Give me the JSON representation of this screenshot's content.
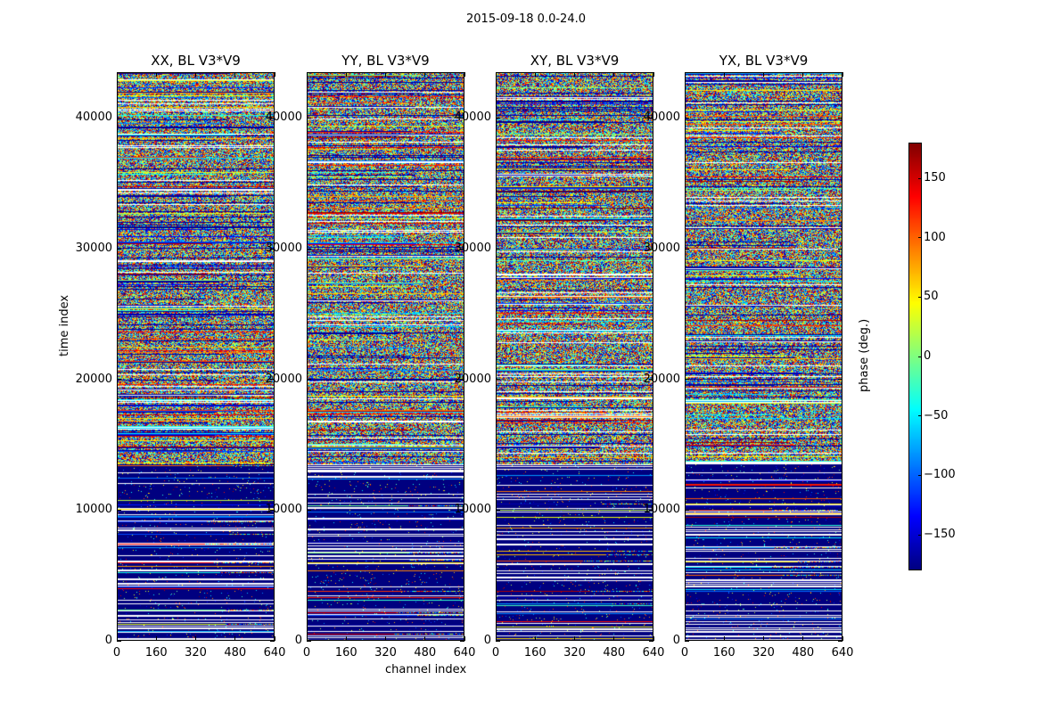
{
  "figure": {
    "suptitle": "2015-09-18 0.0-24.0"
  },
  "colors": {
    "colormap": "jet",
    "colormap_stops": [
      "#00007f",
      "#0000ff",
      "#007fff",
      "#00ffff",
      "#7fff7f",
      "#ffff00",
      "#ff7f00",
      "#ff0000",
      "#7f0000"
    ]
  },
  "chart_data": [
    {
      "type": "heatmap",
      "title": "XX, BL V3*V9",
      "polarization": "XX",
      "baseline": "BL V3*V9",
      "xlabel": "channel index",
      "ylabel": "time index",
      "xlim": [
        0,
        640
      ],
      "ylim": [
        0,
        43500
      ],
      "xticks": [
        0,
        160,
        320,
        480,
        640
      ],
      "yticks": [
        0,
        10000,
        20000,
        30000,
        40000
      ],
      "zlim": [
        -180,
        180
      ],
      "grid": false,
      "time_regions": [
        {
          "time_start": 0,
          "time_end": 13500,
          "description": "mostly -180 deg with scattered white gaps"
        },
        {
          "time_start": 13500,
          "time_end": 43500,
          "description": "random phase noise with horizontal streaks"
        }
      ]
    },
    {
      "type": "heatmap",
      "title": "YY, BL V3*V9",
      "polarization": "YY",
      "baseline": "BL V3*V9",
      "xlabel": "channel index",
      "ylabel": "",
      "xlim": [
        0,
        640
      ],
      "ylim": [
        0,
        43500
      ],
      "xticks": [
        0,
        160,
        320,
        480,
        640
      ],
      "yticks": [
        0,
        10000,
        20000,
        30000,
        40000
      ],
      "zlim": [
        -180,
        180
      ],
      "grid": false
    },
    {
      "type": "heatmap",
      "title": "XY, BL V3*V9",
      "polarization": "XY",
      "baseline": "BL V3*V9",
      "xlabel": "",
      "ylabel": "",
      "xlim": [
        0,
        640
      ],
      "ylim": [
        0,
        43500
      ],
      "xticks": [
        0,
        160,
        320,
        480,
        640
      ],
      "yticks": [
        0,
        10000,
        20000,
        30000,
        40000
      ],
      "zlim": [
        -180,
        180
      ],
      "grid": false
    },
    {
      "type": "heatmap",
      "title": "YX, BL V3*V9",
      "polarization": "YX",
      "baseline": "BL V3*V9",
      "xlabel": "",
      "ylabel": "",
      "xlim": [
        0,
        640
      ],
      "ylim": [
        0,
        43500
      ],
      "xticks": [
        0,
        160,
        320,
        480,
        640
      ],
      "yticks": [
        0,
        10000,
        20000,
        30000,
        40000
      ],
      "zlim": [
        -180,
        180
      ],
      "grid": false
    }
  ],
  "colorbar": {
    "label": "phase (deg.)",
    "range": [
      -180,
      180
    ],
    "ticks": [
      150,
      100,
      50,
      0,
      -50,
      -100,
      -150
    ],
    "tick_labels": [
      "150",
      "100",
      "50",
      "0",
      "−50",
      "−100",
      "−150"
    ]
  },
  "axes_text": {
    "ylabel": "time index",
    "xlabel": "channel index",
    "ytick_labels": [
      "40000",
      "30000",
      "20000",
      "10000",
      "0"
    ],
    "xtick_labels": [
      "0",
      "160",
      "320",
      "480",
      "640"
    ]
  }
}
